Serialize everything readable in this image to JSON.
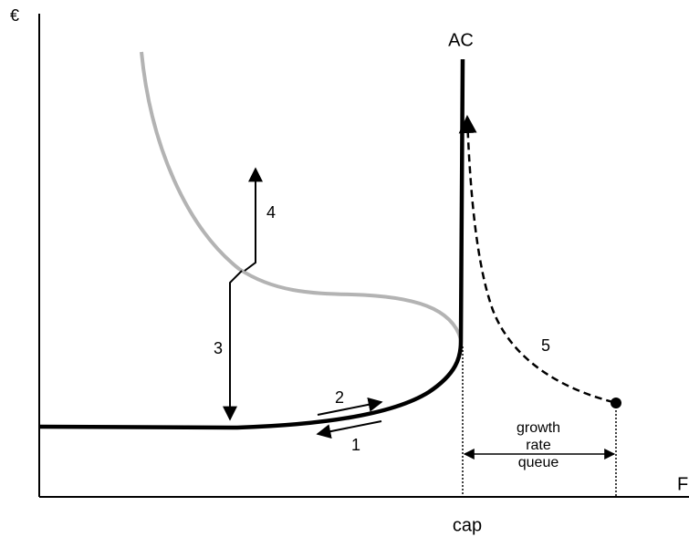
{
  "axes": {
    "y_label": "€",
    "x_label": "F",
    "x_marker": "cap"
  },
  "curves": {
    "ac_label": "AC"
  },
  "steps": [
    "1",
    "2",
    "3",
    "4",
    "5"
  ],
  "queue_label": [
    "growth",
    "rate",
    "queue"
  ]
}
